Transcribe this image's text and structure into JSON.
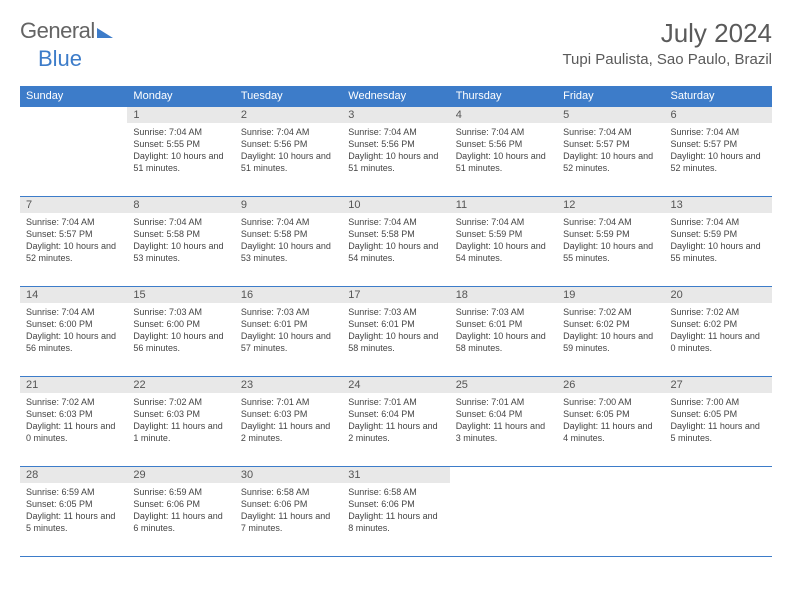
{
  "logo": {
    "text1": "General",
    "text2": "Blue"
  },
  "title": "July 2024",
  "location": "Tupi Paulista, Sao Paulo, Brazil",
  "header_bg": "#3d7cc9",
  "header_fg": "#ffffff",
  "day_headers": [
    "Sunday",
    "Monday",
    "Tuesday",
    "Wednesday",
    "Thursday",
    "Friday",
    "Saturday"
  ],
  "weeks": [
    [
      {
        "n": "",
        "sr": "",
        "ss": "",
        "dl": ""
      },
      {
        "n": "1",
        "sr": "Sunrise: 7:04 AM",
        "ss": "Sunset: 5:55 PM",
        "dl": "Daylight: 10 hours and 51 minutes."
      },
      {
        "n": "2",
        "sr": "Sunrise: 7:04 AM",
        "ss": "Sunset: 5:56 PM",
        "dl": "Daylight: 10 hours and 51 minutes."
      },
      {
        "n": "3",
        "sr": "Sunrise: 7:04 AM",
        "ss": "Sunset: 5:56 PM",
        "dl": "Daylight: 10 hours and 51 minutes."
      },
      {
        "n": "4",
        "sr": "Sunrise: 7:04 AM",
        "ss": "Sunset: 5:56 PM",
        "dl": "Daylight: 10 hours and 51 minutes."
      },
      {
        "n": "5",
        "sr": "Sunrise: 7:04 AM",
        "ss": "Sunset: 5:57 PM",
        "dl": "Daylight: 10 hours and 52 minutes."
      },
      {
        "n": "6",
        "sr": "Sunrise: 7:04 AM",
        "ss": "Sunset: 5:57 PM",
        "dl": "Daylight: 10 hours and 52 minutes."
      }
    ],
    [
      {
        "n": "7",
        "sr": "Sunrise: 7:04 AM",
        "ss": "Sunset: 5:57 PM",
        "dl": "Daylight: 10 hours and 52 minutes."
      },
      {
        "n": "8",
        "sr": "Sunrise: 7:04 AM",
        "ss": "Sunset: 5:58 PM",
        "dl": "Daylight: 10 hours and 53 minutes."
      },
      {
        "n": "9",
        "sr": "Sunrise: 7:04 AM",
        "ss": "Sunset: 5:58 PM",
        "dl": "Daylight: 10 hours and 53 minutes."
      },
      {
        "n": "10",
        "sr": "Sunrise: 7:04 AM",
        "ss": "Sunset: 5:58 PM",
        "dl": "Daylight: 10 hours and 54 minutes."
      },
      {
        "n": "11",
        "sr": "Sunrise: 7:04 AM",
        "ss": "Sunset: 5:59 PM",
        "dl": "Daylight: 10 hours and 54 minutes."
      },
      {
        "n": "12",
        "sr": "Sunrise: 7:04 AM",
        "ss": "Sunset: 5:59 PM",
        "dl": "Daylight: 10 hours and 55 minutes."
      },
      {
        "n": "13",
        "sr": "Sunrise: 7:04 AM",
        "ss": "Sunset: 5:59 PM",
        "dl": "Daylight: 10 hours and 55 minutes."
      }
    ],
    [
      {
        "n": "14",
        "sr": "Sunrise: 7:04 AM",
        "ss": "Sunset: 6:00 PM",
        "dl": "Daylight: 10 hours and 56 minutes."
      },
      {
        "n": "15",
        "sr": "Sunrise: 7:03 AM",
        "ss": "Sunset: 6:00 PM",
        "dl": "Daylight: 10 hours and 56 minutes."
      },
      {
        "n": "16",
        "sr": "Sunrise: 7:03 AM",
        "ss": "Sunset: 6:01 PM",
        "dl": "Daylight: 10 hours and 57 minutes."
      },
      {
        "n": "17",
        "sr": "Sunrise: 7:03 AM",
        "ss": "Sunset: 6:01 PM",
        "dl": "Daylight: 10 hours and 58 minutes."
      },
      {
        "n": "18",
        "sr": "Sunrise: 7:03 AM",
        "ss": "Sunset: 6:01 PM",
        "dl": "Daylight: 10 hours and 58 minutes."
      },
      {
        "n": "19",
        "sr": "Sunrise: 7:02 AM",
        "ss": "Sunset: 6:02 PM",
        "dl": "Daylight: 10 hours and 59 minutes."
      },
      {
        "n": "20",
        "sr": "Sunrise: 7:02 AM",
        "ss": "Sunset: 6:02 PM",
        "dl": "Daylight: 11 hours and 0 minutes."
      }
    ],
    [
      {
        "n": "21",
        "sr": "Sunrise: 7:02 AM",
        "ss": "Sunset: 6:03 PM",
        "dl": "Daylight: 11 hours and 0 minutes."
      },
      {
        "n": "22",
        "sr": "Sunrise: 7:02 AM",
        "ss": "Sunset: 6:03 PM",
        "dl": "Daylight: 11 hours and 1 minute."
      },
      {
        "n": "23",
        "sr": "Sunrise: 7:01 AM",
        "ss": "Sunset: 6:03 PM",
        "dl": "Daylight: 11 hours and 2 minutes."
      },
      {
        "n": "24",
        "sr": "Sunrise: 7:01 AM",
        "ss": "Sunset: 6:04 PM",
        "dl": "Daylight: 11 hours and 2 minutes."
      },
      {
        "n": "25",
        "sr": "Sunrise: 7:01 AM",
        "ss": "Sunset: 6:04 PM",
        "dl": "Daylight: 11 hours and 3 minutes."
      },
      {
        "n": "26",
        "sr": "Sunrise: 7:00 AM",
        "ss": "Sunset: 6:05 PM",
        "dl": "Daylight: 11 hours and 4 minutes."
      },
      {
        "n": "27",
        "sr": "Sunrise: 7:00 AM",
        "ss": "Sunset: 6:05 PM",
        "dl": "Daylight: 11 hours and 5 minutes."
      }
    ],
    [
      {
        "n": "28",
        "sr": "Sunrise: 6:59 AM",
        "ss": "Sunset: 6:05 PM",
        "dl": "Daylight: 11 hours and 5 minutes."
      },
      {
        "n": "29",
        "sr": "Sunrise: 6:59 AM",
        "ss": "Sunset: 6:06 PM",
        "dl": "Daylight: 11 hours and 6 minutes."
      },
      {
        "n": "30",
        "sr": "Sunrise: 6:58 AM",
        "ss": "Sunset: 6:06 PM",
        "dl": "Daylight: 11 hours and 7 minutes."
      },
      {
        "n": "31",
        "sr": "Sunrise: 6:58 AM",
        "ss": "Sunset: 6:06 PM",
        "dl": "Daylight: 11 hours and 8 minutes."
      },
      {
        "n": "",
        "sr": "",
        "ss": "",
        "dl": ""
      },
      {
        "n": "",
        "sr": "",
        "ss": "",
        "dl": ""
      },
      {
        "n": "",
        "sr": "",
        "ss": "",
        "dl": ""
      }
    ]
  ]
}
